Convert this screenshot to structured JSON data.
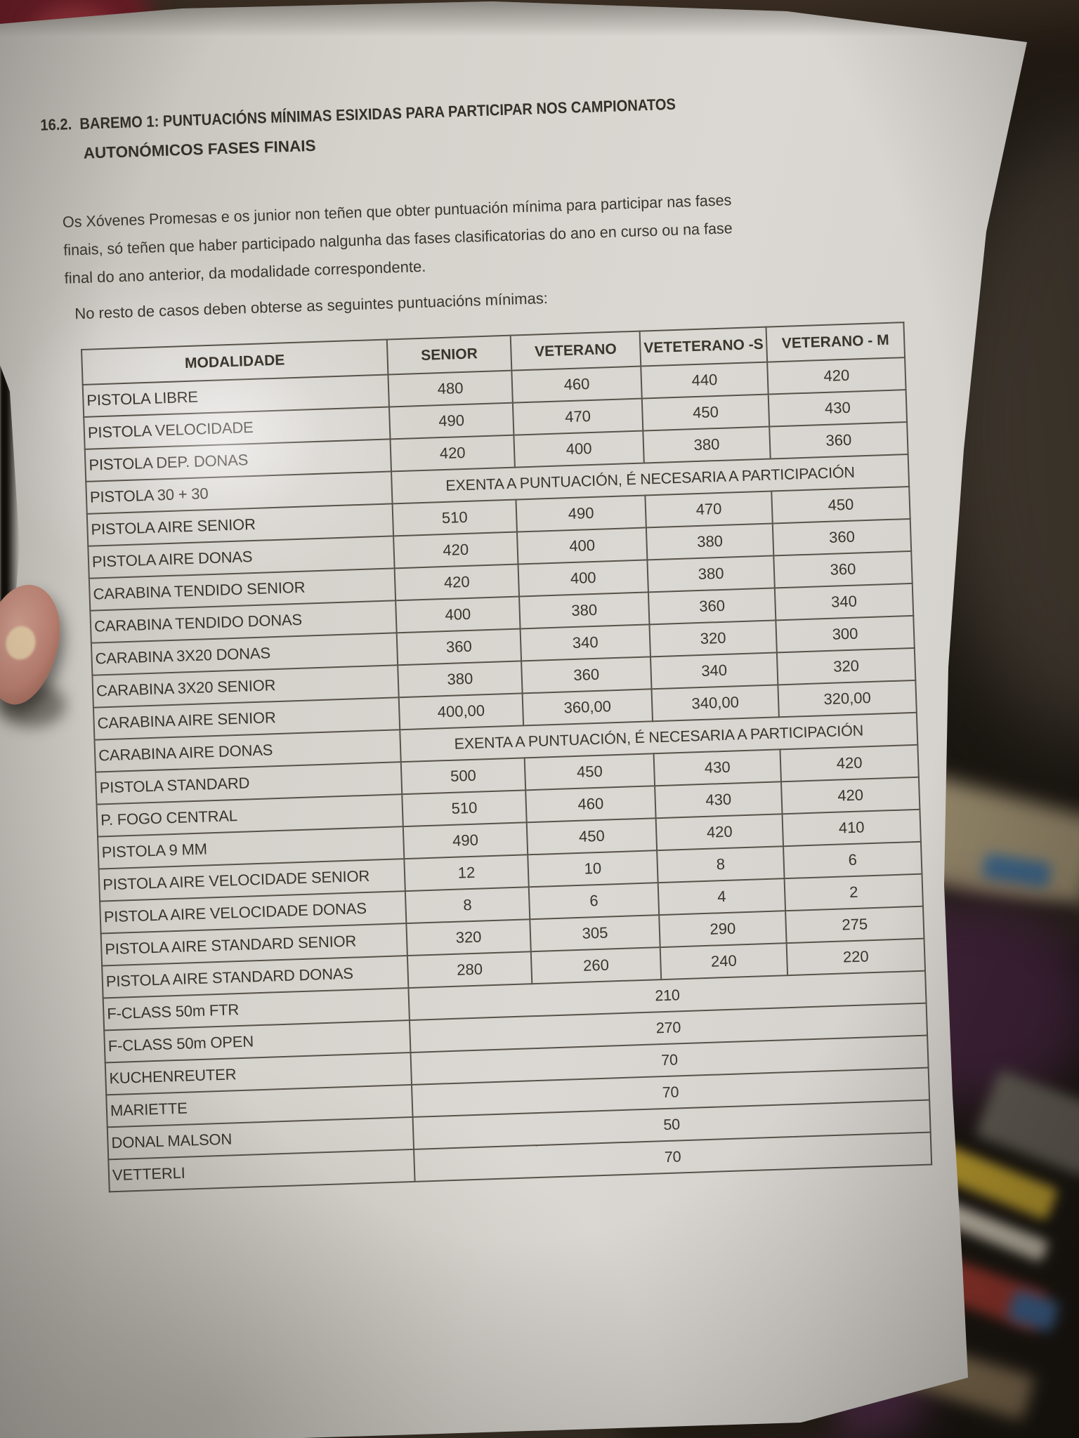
{
  "photo": {
    "background_color": "#191510",
    "paper_color": "#d6d3cd",
    "accent_maroon": "#6b1d26",
    "floor_purple": "#3c2136",
    "table_line_color": "#57524a"
  },
  "document": {
    "section_number": "16.2.",
    "title_lines": [
      "BAREMO  1:  PUNTUACIÓNS  MÍNIMAS  ESIXIDAS PARA  PARTICIPAR  NOS  CAMPIONATOS",
      "AUTONÓMICOS FASES FINAIS"
    ],
    "paragraph_lines": [
      "Os Xóvenes Promesas e os junior non teñen que obter puntuación mínima para participar nas fases",
      "finais, só teñen que haber participado nalgunha das fases clasificatorias do ano en curso ou na fase",
      "final do ano anterior, da modalidade correspondente."
    ],
    "note": "No resto de casos deben obterse as seguintes puntuacións mínimas:"
  },
  "table": {
    "headers": [
      "MODALIDADE",
      "SENIOR",
      "VETERANO",
      "VETETERANO -S",
      "VETERANO - M"
    ],
    "exempt_text": "EXENTA A PUNTUACIÓN, É NECESARIA A PARTICIPACIÓN",
    "rows": [
      {
        "modality": "PISTOLA LIBRE",
        "values": [
          "480",
          "460",
          "440",
          "420"
        ]
      },
      {
        "modality": "PISTOLA VELOCIDADE",
        "values": [
          "490",
          "470",
          "450",
          "430"
        ]
      },
      {
        "modality": "PISTOLA DEP. DONAS",
        "values": [
          "420",
          "400",
          "380",
          "360"
        ]
      },
      {
        "modality": "PISTOLA 30 + 30",
        "exempt": true
      },
      {
        "modality": "PISTOLA AIRE SENIOR",
        "values": [
          "510",
          "490",
          "470",
          "450"
        ]
      },
      {
        "modality": "PISTOLA AIRE DONAS",
        "values": [
          "420",
          "400",
          "380",
          "360"
        ]
      },
      {
        "modality": "CARABINA TENDIDO SENIOR",
        "values": [
          "420",
          "400",
          "380",
          "360"
        ]
      },
      {
        "modality": "CARABINA TENDIDO DONAS",
        "values": [
          "400",
          "380",
          "360",
          "340"
        ]
      },
      {
        "modality": "CARABINA 3X20 DONAS",
        "values": [
          "360",
          "340",
          "320",
          "300"
        ]
      },
      {
        "modality": "CARABINA 3X20 SENIOR",
        "values": [
          "380",
          "360",
          "340",
          "320"
        ]
      },
      {
        "modality": "CARABINA AIRE SENIOR",
        "values": [
          "400,00",
          "360,00",
          "340,00",
          "320,00"
        ]
      },
      {
        "modality": "CARABINA AIRE DONAS",
        "exempt": true
      },
      {
        "modality": "PISTOLA STANDARD",
        "values": [
          "500",
          "450",
          "430",
          "420"
        ]
      },
      {
        "modality": "P. FOGO CENTRAL",
        "values": [
          "510",
          "460",
          "430",
          "420"
        ]
      },
      {
        "modality": "PISTOLA 9 MM",
        "values": [
          "490",
          "450",
          "420",
          "410"
        ]
      },
      {
        "modality": "PISTOLA AIRE VELOCIDADE SENIOR",
        "values": [
          "12",
          "10",
          "8",
          "6"
        ]
      },
      {
        "modality": "PISTOLA AIRE VELOCIDADE DONAS",
        "values": [
          "8",
          "6",
          "4",
          "2"
        ]
      },
      {
        "modality": "PISTOLA AIRE STANDARD SENIOR",
        "values": [
          "320",
          "305",
          "290",
          "275"
        ]
      },
      {
        "modality": "PISTOLA AIRE STANDARD DONAS",
        "values": [
          "280",
          "260",
          "240",
          "220"
        ]
      },
      {
        "modality": "F-CLASS 50m FTR",
        "single": "210"
      },
      {
        "modality": "F-CLASS 50m OPEN",
        "single": "270"
      },
      {
        "modality": "KUCHENREUTER",
        "single": "70"
      },
      {
        "modality": "MARIETTE",
        "single": "70"
      },
      {
        "modality": "DONAL MALSON",
        "single": "50"
      },
      {
        "modality": "VETTERLI",
        "single": "70"
      }
    ]
  }
}
